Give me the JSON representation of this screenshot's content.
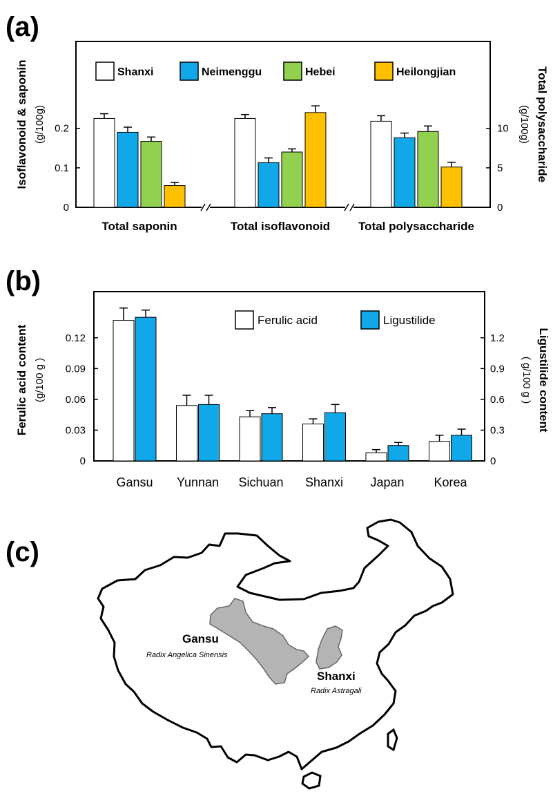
{
  "panel_labels": {
    "a": "(a)",
    "b": "(b)",
    "c": "(c)"
  },
  "colors": {
    "Shanxi": "#ffffff",
    "Neimenggu": "#10a8e8",
    "Hebei": "#92d050",
    "Heilongjian": "#ffc000",
    "Ferulic acid": "#ffffff",
    "Ligustilide": "#10a8e8",
    "map_region": "#b4b4b4"
  },
  "chart_data": [
    {
      "type": "bar",
      "panel": "(a)",
      "legend": [
        "Shanxi",
        "Neimenggu",
        "Hebei",
        "Heilongjian"
      ],
      "legend_position": "top",
      "ylabel_left": "Isoflavonoid & saponin",
      "ylabel_left_unit": "(g/100g)",
      "ylabel_right": "Total polysaccharide",
      "ylabel_right_unit": "(g/100g)",
      "yticks_left": [
        "0",
        "0.1",
        "0.2"
      ],
      "yticks_right": [
        "0",
        "5",
        "10"
      ],
      "ylim_left": [
        0,
        0.42
      ],
      "ylim_right": [
        0,
        21
      ],
      "groups": [
        {
          "label": "Total saponin",
          "axis": "left",
          "values": [
            0.225,
            0.19,
            0.167,
            0.055
          ],
          "errors": [
            0.012,
            0.013,
            0.011,
            0.008
          ]
        },
        {
          "label": "Total isoflavonoid",
          "axis": "left",
          "values": [
            0.225,
            0.113,
            0.14,
            0.24
          ],
          "errors": [
            0.01,
            0.012,
            0.008,
            0.017
          ]
        },
        {
          "label": "Total polysaccharide",
          "axis": "right",
          "values": [
            10.9,
            8.8,
            9.6,
            5.1
          ],
          "errors": [
            0.7,
            0.6,
            0.7,
            0.6
          ]
        }
      ],
      "axis_breaks": 2
    },
    {
      "type": "bar",
      "panel": "(b)",
      "legend": [
        "Ferulic acid",
        "Ligustilide"
      ],
      "legend_position": "top-right",
      "ylabel_left": "Ferulic acid content",
      "ylabel_left_unit": "(g/100 g )",
      "ylabel_right": "Ligustilide content",
      "ylabel_right_unit": "( g/100 g )",
      "yticks_left": [
        "0",
        "0.03",
        "0.06",
        "0.09",
        "0.12"
      ],
      "yticks_right": [
        "0",
        "0.3",
        "0.6",
        "0.9",
        "1.2"
      ],
      "ylim_left": [
        0,
        0.165
      ],
      "ylim_right": [
        0,
        1.65
      ],
      "categories": [
        "Gansu",
        "Yunnan",
        "Sichuan",
        "Shanxi",
        "Japan",
        "Korea"
      ],
      "series": [
        {
          "name": "Ferulic acid",
          "axis": "left",
          "values": [
            0.137,
            0.054,
            0.043,
            0.036,
            0.008,
            0.019
          ],
          "errors": [
            0.012,
            0.01,
            0.006,
            0.005,
            0.003,
            0.006
          ]
        },
        {
          "name": "Ligustilide",
          "axis": "right",
          "values": [
            1.4,
            0.55,
            0.46,
            0.47,
            0.15,
            0.25
          ],
          "errors": [
            0.07,
            0.09,
            0.06,
            0.08,
            0.03,
            0.06
          ]
        }
      ]
    }
  ],
  "map": {
    "regions": [
      {
        "name": "Gansu",
        "herb": "Radix Angelica Sinensis"
      },
      {
        "name": "Shanxi",
        "herb": "Radix Astragali"
      }
    ]
  }
}
